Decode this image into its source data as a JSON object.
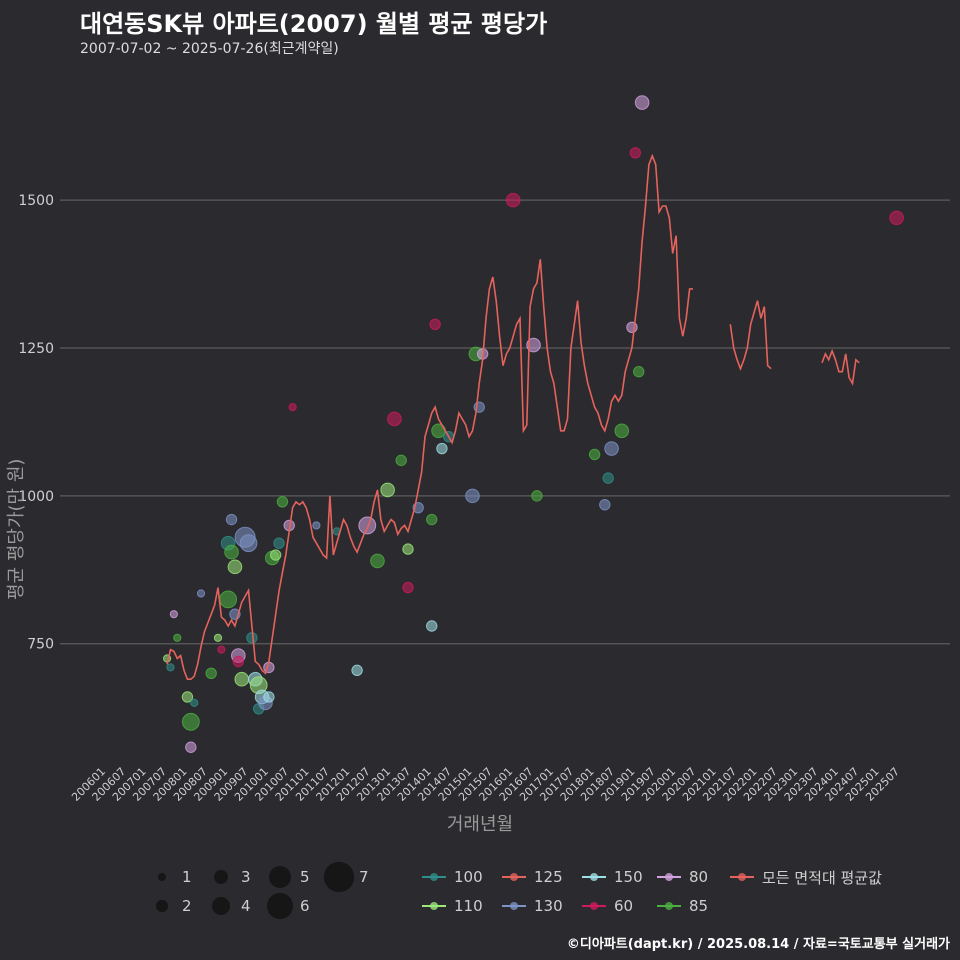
{
  "title": "대연동SK뷰 아파트(2007) 월별 평균 평당가",
  "subtitle": "2007-07-02 ~ 2025-07-26(최근계약일)",
  "footer": "©디아파트(dapt.kr) / 2025.08.14 / 자료=국토교통부 실거래가",
  "chart_data": {
    "type": "scatter",
    "xlabel": "거래년월",
    "ylabel": "평균 평당가(만 원)",
    "ylim": [
      545,
      1720
    ],
    "yticks": [
      750,
      1000,
      1250,
      1500
    ],
    "xticks": [
      "200601",
      "200607",
      "200701",
      "200707",
      "200801",
      "200807",
      "200901",
      "200907",
      "201001",
      "201007",
      "201101",
      "201107",
      "201201",
      "201207",
      "201301",
      "201307",
      "201401",
      "201407",
      "201501",
      "201507",
      "201601",
      "201607",
      "201701",
      "201707",
      "201801",
      "201807",
      "201901",
      "201907",
      "202001",
      "202007",
      "202101",
      "202107",
      "202201",
      "202207",
      "202301",
      "202307",
      "202401",
      "202407",
      "202501",
      "202507"
    ],
    "grid": "horizontal",
    "legend_position": "bottom",
    "size_legend": {
      "values": [
        1,
        2,
        3,
        4,
        5,
        6,
        7
      ]
    },
    "color_legend": [
      {
        "name": "100",
        "color": "#2f8f8a"
      },
      {
        "name": "110",
        "color": "#9be87a"
      },
      {
        "name": "125",
        "color": "#e5635c"
      },
      {
        "name": "130",
        "color": "#7d94c8"
      },
      {
        "name": "150",
        "color": "#9fe0e6"
      },
      {
        "name": "60",
        "color": "#d11a5e"
      },
      {
        "name": "80",
        "color": "#d3a2e0"
      },
      {
        "name": "85",
        "color": "#4cb040"
      },
      {
        "name": "모든 면적대 평균값",
        "color": "#e5635c"
      }
    ],
    "average_line": [
      [
        "2007-07",
        715
      ],
      [
        "2007-08",
        740
      ],
      [
        "2007-09",
        737
      ],
      [
        "2007-10",
        725
      ],
      [
        "2007-11",
        730
      ],
      [
        "2007-12",
        705
      ],
      [
        "2008-01",
        690
      ],
      [
        "2008-02",
        690
      ],
      [
        "2008-03",
        695
      ],
      [
        "2008-04",
        715
      ],
      [
        "2008-05",
        745
      ],
      [
        "2008-06",
        770
      ],
      [
        "2008-07",
        785
      ],
      [
        "2008-08",
        800
      ],
      [
        "2008-09",
        815
      ],
      [
        "2008-10",
        845
      ],
      [
        "2008-11",
        795
      ],
      [
        "2008-12",
        790
      ],
      [
        "2009-01",
        780
      ],
      [
        "2009-02",
        790
      ],
      [
        "2009-03",
        780
      ],
      [
        "2009-04",
        800
      ],
      [
        "2009-05",
        820
      ],
      [
        "2009-06",
        830
      ],
      [
        "2009-07",
        840
      ],
      [
        "2009-08",
        780
      ],
      [
        "2009-09",
        720
      ],
      [
        "2009-10",
        715
      ],
      [
        "2009-11",
        705
      ],
      [
        "2009-12",
        700
      ],
      [
        "2010-01",
        720
      ],
      [
        "2010-02",
        760
      ],
      [
        "2010-03",
        800
      ],
      [
        "2010-04",
        840
      ],
      [
        "2010-05",
        870
      ],
      [
        "2010-06",
        900
      ],
      [
        "2010-07",
        940
      ],
      [
        "2010-08",
        980
      ],
      [
        "2010-09",
        990
      ],
      [
        "2010-10",
        985
      ],
      [
        "2010-11",
        990
      ],
      [
        "2010-12",
        980
      ],
      [
        "2011-01",
        960
      ],
      [
        "2011-02",
        930
      ],
      [
        "2011-03",
        920
      ],
      [
        "2011-04",
        910
      ],
      [
        "2011-05",
        900
      ],
      [
        "2011-06",
        895
      ],
      [
        "2011-07",
        1000
      ],
      [
        "2011-08",
        900
      ],
      [
        "2011-09",
        920
      ],
      [
        "2011-10",
        940
      ],
      [
        "2011-11",
        960
      ],
      [
        "2011-12",
        950
      ],
      [
        "2012-01",
        930
      ],
      [
        "2012-02",
        915
      ],
      [
        "2012-03",
        905
      ],
      [
        "2012-04",
        920
      ],
      [
        "2012-05",
        935
      ],
      [
        "2012-06",
        945
      ],
      [
        "2012-07",
        960
      ],
      [
        "2012-08",
        990
      ],
      [
        "2012-09",
        1010
      ],
      [
        "2012-10",
        960
      ],
      [
        "2012-11",
        940
      ],
      [
        "2012-12",
        950
      ],
      [
        "2013-01",
        960
      ],
      [
        "2013-02",
        955
      ],
      [
        "2013-03",
        935
      ],
      [
        "2013-04",
        945
      ],
      [
        "2013-05",
        950
      ],
      [
        "2013-06",
        940
      ],
      [
        "2013-07",
        960
      ],
      [
        "2013-08",
        980
      ],
      [
        "2013-09",
        1010
      ],
      [
        "2013-10",
        1040
      ],
      [
        "2013-11",
        1100
      ],
      [
        "2013-12",
        1120
      ],
      [
        "2014-01",
        1140
      ],
      [
        "2014-02",
        1150
      ],
      [
        "2014-03",
        1130
      ],
      [
        "2014-04",
        1120
      ],
      [
        "2014-05",
        1110
      ],
      [
        "2014-06",
        1100
      ],
      [
        "2014-07",
        1090
      ],
      [
        "2014-08",
        1110
      ],
      [
        "2014-09",
        1140
      ],
      [
        "2014-10",
        1130
      ],
      [
        "2014-11",
        1120
      ],
      [
        "2014-12",
        1100
      ],
      [
        "2015-01",
        1110
      ],
      [
        "2015-02",
        1140
      ],
      [
        "2015-03",
        1190
      ],
      [
        "2015-04",
        1230
      ],
      [
        "2015-05",
        1300
      ],
      [
        "2015-06",
        1350
      ],
      [
        "2015-07",
        1370
      ],
      [
        "2015-08",
        1330
      ],
      [
        "2015-09",
        1270
      ],
      [
        "2015-10",
        1220
      ],
      [
        "2015-11",
        1240
      ],
      [
        "2015-12",
        1250
      ],
      [
        "2016-01",
        1270
      ],
      [
        "2016-02",
        1290
      ],
      [
        "2016-03",
        1300
      ],
      [
        "2016-04",
        1110
      ],
      [
        "2016-05",
        1120
      ],
      [
        "2016-06",
        1320
      ],
      [
        "2016-07",
        1350
      ],
      [
        "2016-08",
        1360
      ],
      [
        "2016-09",
        1400
      ],
      [
        "2016-10",
        1320
      ],
      [
        "2016-11",
        1250
      ],
      [
        "2016-12",
        1210
      ],
      [
        "2017-01",
        1190
      ],
      [
        "2017-02",
        1150
      ],
      [
        "2017-03",
        1110
      ],
      [
        "2017-04",
        1110
      ],
      [
        "2017-05",
        1130
      ],
      [
        "2017-06",
        1250
      ],
      [
        "2017-07",
        1290
      ],
      [
        "2017-08",
        1330
      ],
      [
        "2017-09",
        1260
      ],
      [
        "2017-10",
        1220
      ],
      [
        "2017-11",
        1190
      ],
      [
        "2017-12",
        1170
      ],
      [
        "2018-01",
        1150
      ],
      [
        "2018-02",
        1140
      ],
      [
        "2018-03",
        1120
      ],
      [
        "2018-04",
        1110
      ],
      [
        "2018-05",
        1130
      ],
      [
        "2018-06",
        1160
      ],
      [
        "2018-07",
        1170
      ],
      [
        "2018-08",
        1160
      ],
      [
        "2018-09",
        1170
      ],
      [
        "2018-10",
        1210
      ],
      [
        "2018-11",
        1230
      ],
      [
        "2018-12",
        1250
      ],
      [
        "2019-01",
        1300
      ],
      [
        "2019-02",
        1350
      ],
      [
        "2019-03",
        1430
      ],
      [
        "2019-04",
        1490
      ],
      [
        "2019-05",
        1560
      ],
      [
        "2019-06",
        1575
      ],
      [
        "2019-07",
        1560
      ],
      [
        "2019-08",
        1480
      ],
      [
        "2019-09",
        1490
      ],
      [
        "2019-10",
        1490
      ],
      [
        "2019-11",
        1470
      ],
      [
        "2019-12",
        1410
      ],
      [
        "2020-01",
        1440
      ],
      [
        "2020-02",
        1300
      ],
      [
        "2020-03",
        1270
      ],
      [
        "2020-04",
        1300
      ],
      [
        "2020-05",
        1350
      ],
      [
        "2020-06",
        1350
      ],
      [
        "2021-05",
        1290
      ],
      [
        "2021-06",
        1250
      ],
      [
        "2021-07",
        1230
      ],
      [
        "2021-08",
        1215
      ],
      [
        "2021-09",
        1230
      ],
      [
        "2021-10",
        1250
      ],
      [
        "2021-11",
        1290
      ],
      [
        "2021-12",
        1310
      ],
      [
        "2022-01",
        1330
      ],
      [
        "2022-02",
        1300
      ],
      [
        "2022-03",
        1320
      ],
      [
        "2022-04",
        1220
      ],
      [
        "2022-05",
        1215
      ],
      [
        "2023-08",
        1225
      ],
      [
        "2023-09",
        1240
      ],
      [
        "2023-10",
        1230
      ],
      [
        "2023-11",
        1245
      ],
      [
        "2023-12",
        1230
      ],
      [
        "2024-01",
        1210
      ],
      [
        "2024-02",
        1210
      ],
      [
        "2024-03",
        1240
      ],
      [
        "2024-04",
        1200
      ],
      [
        "2024-05",
        1190
      ],
      [
        "2024-06",
        1230
      ],
      [
        "2024-07",
        1225
      ]
    ],
    "points": [
      {
        "area": "110",
        "x": "2007-07",
        "y": 725,
        "n": 1
      },
      {
        "area": "100",
        "x": "2007-08",
        "y": 710,
        "n": 1
      },
      {
        "area": "80",
        "x": "2007-09",
        "y": 800,
        "n": 1
      },
      {
        "area": "85",
        "x": "2007-10",
        "y": 760,
        "n": 1
      },
      {
        "area": "110",
        "x": "2008-01",
        "y": 660,
        "n": 2
      },
      {
        "area": "85",
        "x": "2008-02",
        "y": 618,
        "n": 4
      },
      {
        "area": "80",
        "x": "2008-02",
        "y": 575,
        "n": 2
      },
      {
        "area": "100",
        "x": "2008-03",
        "y": 650,
        "n": 1
      },
      {
        "area": "130",
        "x": "2008-05",
        "y": 835,
        "n": 1
      },
      {
        "area": "85",
        "x": "2008-08",
        "y": 700,
        "n": 2
      },
      {
        "area": "110",
        "x": "2008-10",
        "y": 760,
        "n": 1
      },
      {
        "area": "60",
        "x": "2008-11",
        "y": 740,
        "n": 1
      },
      {
        "area": "100",
        "x": "2009-01",
        "y": 920,
        "n": 3
      },
      {
        "area": "85",
        "x": "2009-01",
        "y": 825,
        "n": 4
      },
      {
        "area": "130",
        "x": "2009-02",
        "y": 960,
        "n": 2
      },
      {
        "area": "85",
        "x": "2009-02",
        "y": 905,
        "n": 3
      },
      {
        "area": "110",
        "x": "2009-03",
        "y": 880,
        "n": 3
      },
      {
        "area": "130",
        "x": "2009-03",
        "y": 800,
        "n": 2
      },
      {
        "area": "80",
        "x": "2009-04",
        "y": 730,
        "n": 3
      },
      {
        "area": "60",
        "x": "2009-04",
        "y": 720,
        "n": 2
      },
      {
        "area": "110",
        "x": "2009-05",
        "y": 690,
        "n": 3
      },
      {
        "area": "130",
        "x": "2009-06",
        "y": 930,
        "n": 5
      },
      {
        "area": "130",
        "x": "2009-07",
        "y": 920,
        "n": 4
      },
      {
        "area": "100",
        "x": "2009-08",
        "y": 760,
        "n": 2
      },
      {
        "area": "150",
        "x": "2009-09",
        "y": 690,
        "n": 3
      },
      {
        "area": "110",
        "x": "2009-10",
        "y": 680,
        "n": 4
      },
      {
        "area": "100",
        "x": "2009-10",
        "y": 640,
        "n": 2
      },
      {
        "area": "150",
        "x": "2009-11",
        "y": 660,
        "n": 3
      },
      {
        "area": "130",
        "x": "2009-12",
        "y": 650,
        "n": 3
      },
      {
        "area": "150",
        "x": "2010-01",
        "y": 660,
        "n": 2
      },
      {
        "area": "80",
        "x": "2010-01",
        "y": 710,
        "n": 2
      },
      {
        "area": "85",
        "x": "2010-02",
        "y": 895,
        "n": 3
      },
      {
        "area": "110",
        "x": "2010-03",
        "y": 900,
        "n": 2
      },
      {
        "area": "100",
        "x": "2010-04",
        "y": 920,
        "n": 2
      },
      {
        "area": "85",
        "x": "2010-05",
        "y": 990,
        "n": 2
      },
      {
        "area": "80",
        "x": "2010-07",
        "y": 950,
        "n": 2
      },
      {
        "area": "60",
        "x": "2010-08",
        "y": 1150,
        "n": 1
      },
      {
        "area": "130",
        "x": "2011-03",
        "y": 950,
        "n": 1
      },
      {
        "area": "100",
        "x": "2011-09",
        "y": 940,
        "n": 1
      },
      {
        "area": "150",
        "x": "2012-03",
        "y": 705,
        "n": 2
      },
      {
        "area": "80",
        "x": "2012-06",
        "y": 950,
        "n": 4
      },
      {
        "area": "85",
        "x": "2012-09",
        "y": 890,
        "n": 3
      },
      {
        "area": "110",
        "x": "2012-12",
        "y": 1010,
        "n": 3
      },
      {
        "area": "60",
        "x": "2013-02",
        "y": 1130,
        "n": 3
      },
      {
        "area": "85",
        "x": "2013-04",
        "y": 1060,
        "n": 2
      },
      {
        "area": "110",
        "x": "2013-06",
        "y": 910,
        "n": 2
      },
      {
        "area": "60",
        "x": "2013-06",
        "y": 845,
        "n": 2
      },
      {
        "area": "130",
        "x": "2013-09",
        "y": 980,
        "n": 2
      },
      {
        "area": "150",
        "x": "2014-01",
        "y": 780,
        "n": 2
      },
      {
        "area": "85",
        "x": "2014-01",
        "y": 960,
        "n": 2
      },
      {
        "area": "60",
        "x": "2014-02",
        "y": 1290,
        "n": 2
      },
      {
        "area": "85",
        "x": "2014-03",
        "y": 1110,
        "n": 3
      },
      {
        "area": "150",
        "x": "2014-04",
        "y": 1080,
        "n": 2
      },
      {
        "area": "100",
        "x": "2014-06",
        "y": 1100,
        "n": 2
      },
      {
        "area": "130",
        "x": "2015-01",
        "y": 1000,
        "n": 3
      },
      {
        "area": "85",
        "x": "2015-02",
        "y": 1240,
        "n": 3
      },
      {
        "area": "130",
        "x": "2015-03",
        "y": 1150,
        "n": 2
      },
      {
        "area": "80",
        "x": "2015-04",
        "y": 1240,
        "n": 2
      },
      {
        "area": "60",
        "x": "2016-01",
        "y": 1500,
        "n": 3
      },
      {
        "area": "80",
        "x": "2016-07",
        "y": 1255,
        "n": 3
      },
      {
        "area": "85",
        "x": "2016-08",
        "y": 1000,
        "n": 2
      },
      {
        "area": "85",
        "x": "2018-01",
        "y": 1070,
        "n": 2
      },
      {
        "area": "130",
        "x": "2018-04",
        "y": 985,
        "n": 2
      },
      {
        "area": "100",
        "x": "2018-05",
        "y": 1030,
        "n": 2
      },
      {
        "area": "130",
        "x": "2018-06",
        "y": 1080,
        "n": 3
      },
      {
        "area": "85",
        "x": "2018-09",
        "y": 1110,
        "n": 3
      },
      {
        "area": "60",
        "x": "2019-01",
        "y": 1580,
        "n": 2
      },
      {
        "area": "80",
        "x": "2019-03",
        "y": 1665,
        "n": 3
      },
      {
        "area": "85",
        "x": "2019-02",
        "y": 1210,
        "n": 2
      },
      {
        "area": "80",
        "x": "2018-12",
        "y": 1285,
        "n": 2
      },
      {
        "area": "60",
        "x": "2025-06",
        "y": 1470,
        "n": 3
      }
    ]
  }
}
